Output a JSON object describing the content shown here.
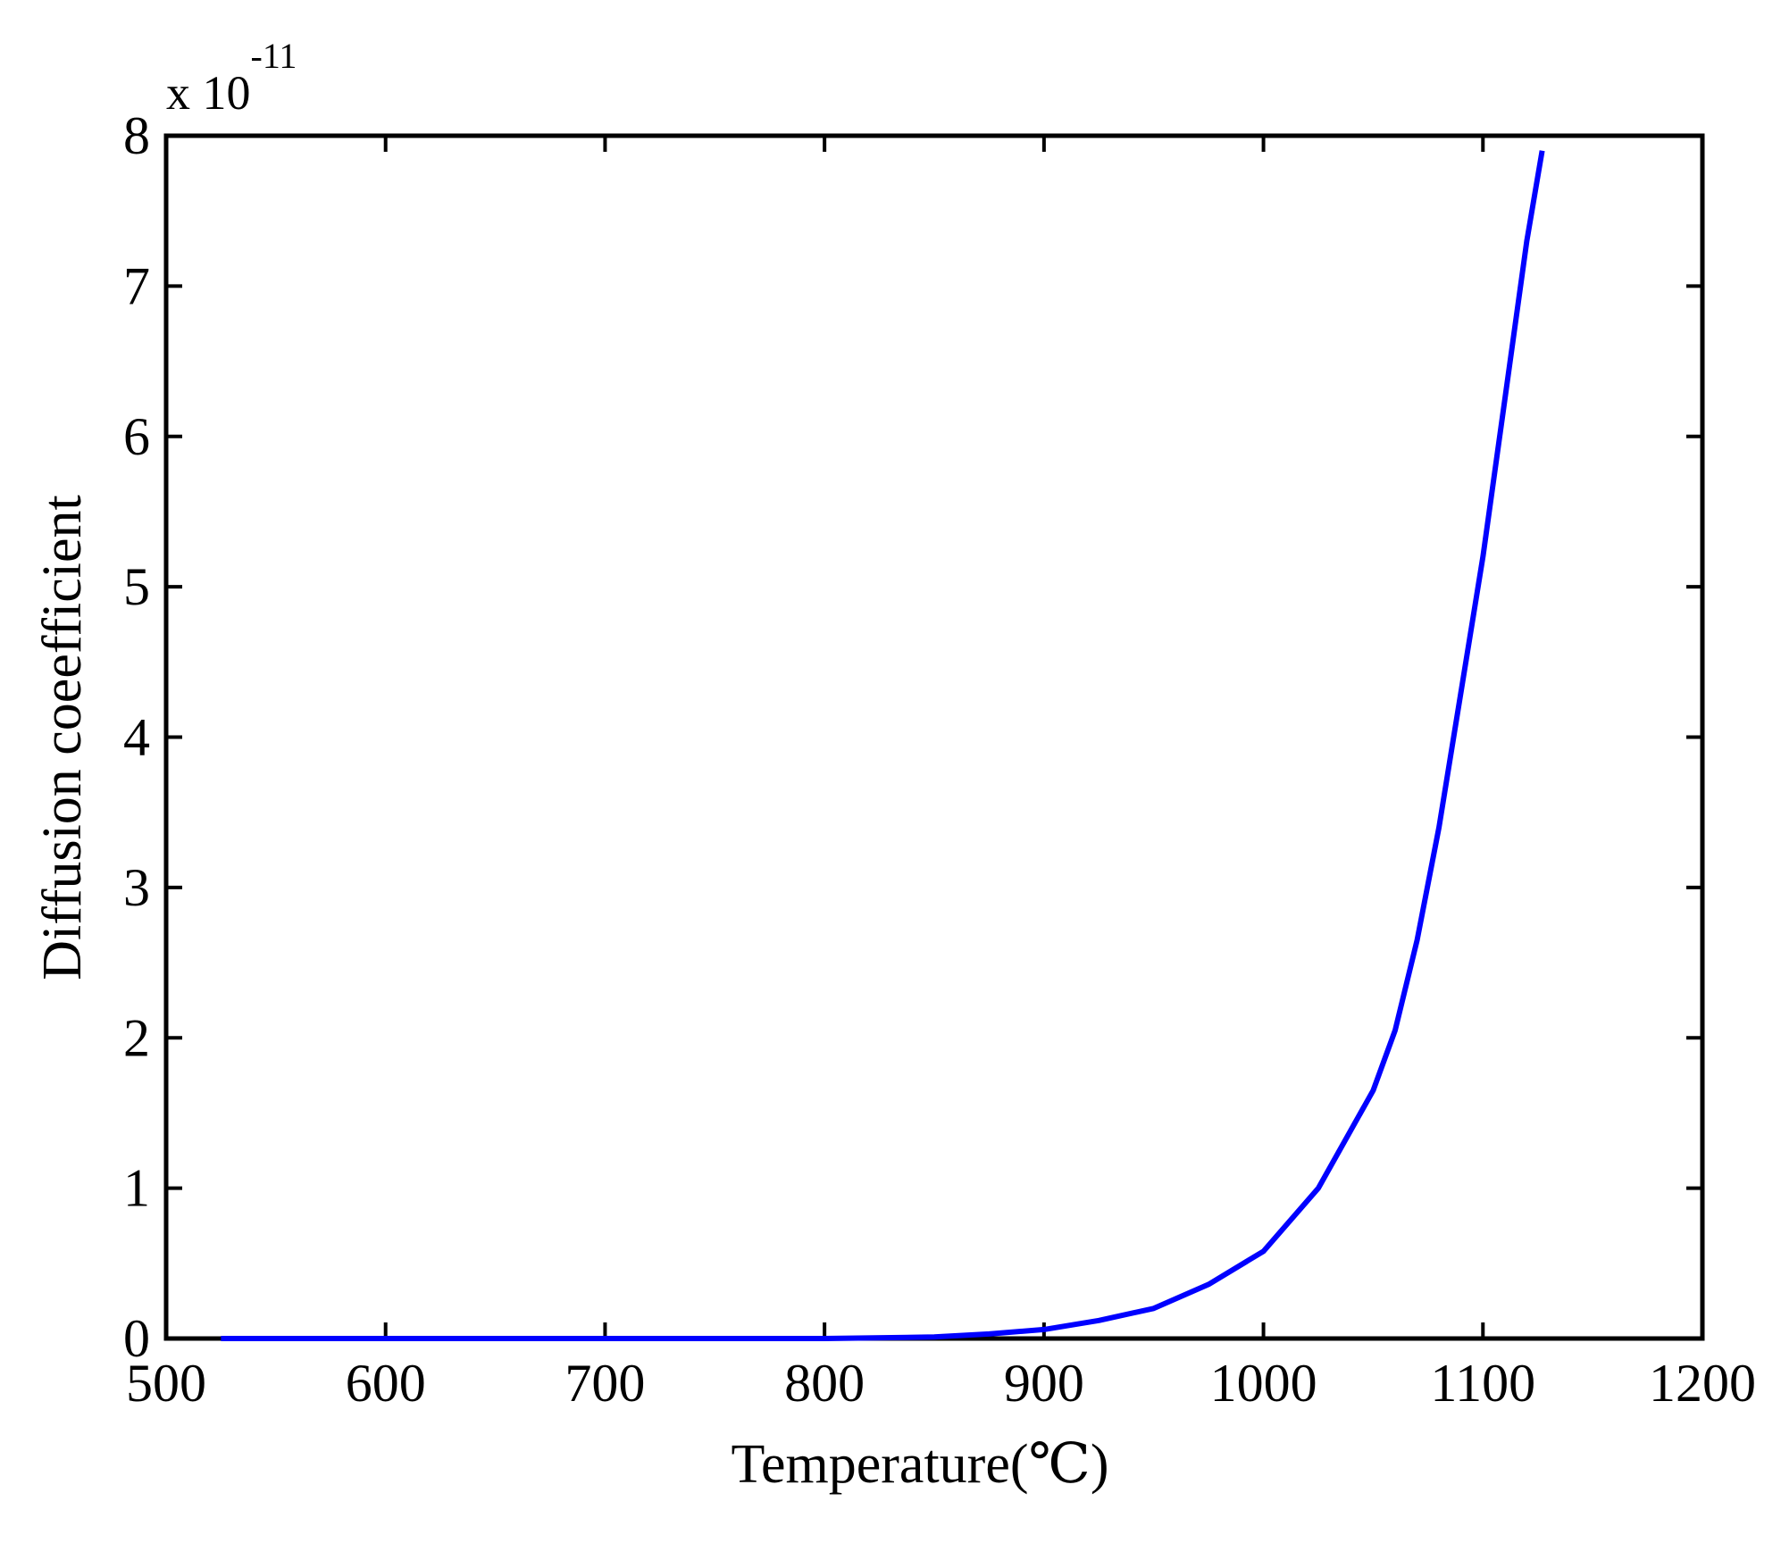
{
  "chart_data": {
    "type": "line",
    "xlabel": "Temperature(℃)",
    "ylabel": "Diffusion coeefficient",
    "y_multiplier": {
      "base": "x 10",
      "exponent": "-11"
    },
    "xlim": [
      500,
      1200
    ],
    "ylim": [
      0,
      8
    ],
    "x_ticks": [
      "500",
      "600",
      "700",
      "800",
      "900",
      "1000",
      "1100",
      "1200"
    ],
    "y_ticks": [
      "0",
      "1",
      "2",
      "3",
      "4",
      "5",
      "6",
      "7",
      "8"
    ],
    "grid": false,
    "series": [
      {
        "color": "#0000ff",
        "x": [
          525,
          600,
          700,
          800,
          850,
          875,
          900,
          925,
          950,
          975,
          1000,
          1025,
          1050,
          1060,
          1070,
          1080,
          1090,
          1100,
          1110,
          1120,
          1127
        ],
        "y": [
          0.0,
          0.0,
          0.0,
          0.0,
          0.01,
          0.03,
          0.06,
          0.12,
          0.2,
          0.36,
          0.58,
          1.0,
          1.65,
          2.05,
          2.65,
          3.4,
          4.3,
          5.2,
          6.25,
          7.3,
          7.9
        ]
      }
    ]
  }
}
